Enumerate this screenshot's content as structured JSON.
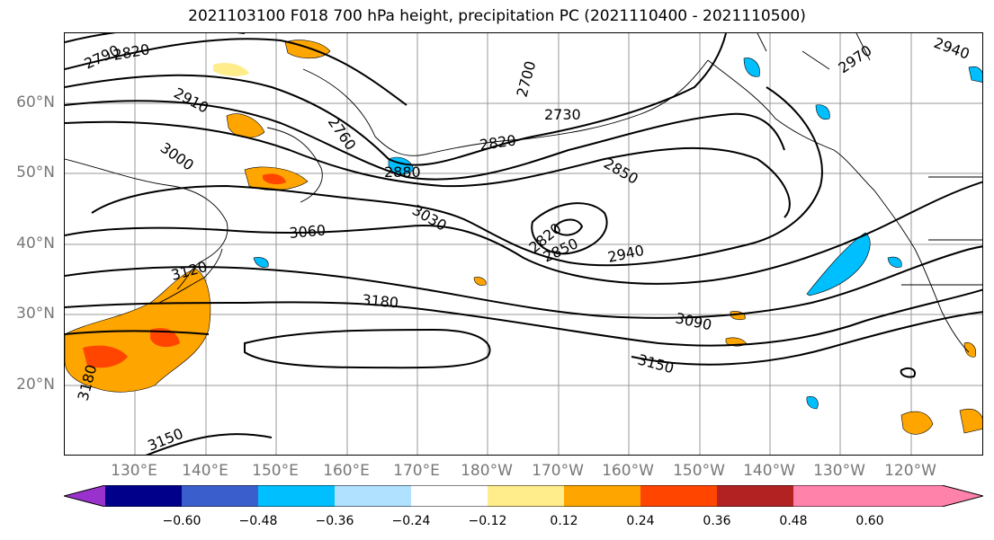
{
  "title": "2021103100 F018 700 hPa height, precipitation PC (2021110400 - 2021110500)",
  "lat_labels": [
    "60°N",
    "50°N",
    "40°N",
    "30°N",
    "20°N"
  ],
  "lon_labels": [
    "130°E",
    "140°E",
    "150°E",
    "160°E",
    "170°E",
    "180°W",
    "170°W",
    "160°W",
    "150°W",
    "140°W",
    "130°W",
    "120°W"
  ],
  "contour_labels": [
    "2790",
    "2820",
    "2910",
    "3000",
    "2760",
    "2700",
    "2730",
    "2820",
    "2880",
    "2850",
    "3060",
    "3030",
    "2820",
    "2850",
    "2940",
    "3180",
    "3090",
    "3150",
    "3180",
    "3150",
    "2970",
    "2940",
    "3120"
  ],
  "colorbar": {
    "ticks": [
      "−0.60",
      "−0.48",
      "−0.36",
      "−0.24",
      "−0.12",
      "0.12",
      "0.24",
      "0.36",
      "0.48",
      "0.60"
    ],
    "colors": [
      "#9932cc",
      "#00008b",
      "#3a5fcd",
      "#00bfff",
      "#b0e2ff",
      "#ffffff",
      "#ffec8b",
      "#ffa500",
      "#ff4500",
      "#b22222",
      "#ff82ab"
    ]
  }
}
